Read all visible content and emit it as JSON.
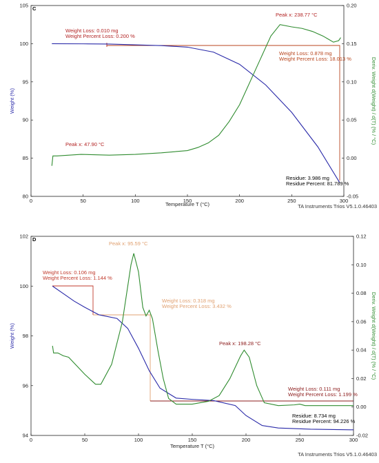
{
  "chart_data": [
    {
      "type": "line",
      "x_label": "Temperature T (°C)",
      "y_label": "Weight (%)",
      "y2_label": "Deriv. Weight d(Weight) / d(T) (% / °C)",
      "footer": "TA Instruments Trios V5.1.0.46403",
      "xlim": [
        0,
        300
      ],
      "xticks": [
        0,
        50,
        100,
        150,
        200,
        250,
        300
      ],
      "ylim": [
        80,
        105
      ],
      "yticks": [
        80,
        85,
        90,
        95,
        100,
        105
      ],
      "y2lim": [
        -0.05,
        0.2
      ],
      "y2ticks": [
        -0.05,
        {
          "value": 0,
          "label": "0.00"
        },
        0.05,
        {
          "value": 0.1,
          "label": "0.10"
        },
        0.15,
        {
          "value": 0.2,
          "label": "0.20"
        }
      ],
      "series": [
        {
          "name": "Weight",
          "color": "#2828a8",
          "axis": "y",
          "x": [
            20,
            50,
            75,
            100,
            125,
            150,
            175,
            200,
            225,
            250,
            275,
            296
          ],
          "values": [
            100,
            99.98,
            99.95,
            99.85,
            99.75,
            99.55,
            98.9,
            97.3,
            94.6,
            91,
            86.5,
            81.8
          ]
        },
        {
          "name": "Deriv. Weight",
          "color": "#2e8b2e",
          "axis": "y2",
          "x": [
            20,
            21,
            25,
            47.9,
            75,
            100,
            125,
            150,
            160,
            170,
            180,
            190,
            200,
            210,
            220,
            230,
            238.77,
            250,
            260,
            270,
            280,
            285,
            290,
            295,
            297
          ],
          "values": [
            -0.01,
            0.003,
            0.003,
            0.005,
            0.004,
            0.005,
            0.007,
            0.01,
            0.014,
            0.02,
            0.03,
            0.048,
            0.07,
            0.1,
            0.13,
            0.16,
            0.175,
            0.172,
            0.17,
            0.166,
            0.16,
            0.156,
            0.152,
            0.154,
            0.158
          ]
        }
      ],
      "annotations": [
        {
          "text": "C",
          "color": "#000000"
        },
        {
          "text": "Weight Loss: 0.010 mg",
          "color": "#b22222"
        },
        {
          "text": "Weight Percent Loss: 0.200 %",
          "color": "#b22222"
        },
        {
          "text": "Peak x: 238.77 °C",
          "color": "#b22222"
        },
        {
          "text": "Weight Loss: 0.878 mg",
          "color": "#b8461e"
        },
        {
          "text": "Weight Percent Loss: 18.013 %",
          "color": "#b8461e"
        },
        {
          "text": "Peak x: 47.90 °C",
          "color": "#b22222"
        },
        {
          "text": "Residue: 3.986 mg",
          "color": "#000000"
        },
        {
          "text": "Residue Percent: 81.789 %",
          "color": "#000000"
        }
      ]
    },
    {
      "type": "line",
      "x_label": "Temperature T (°C)",
      "y_label": "Weight (%)",
      "y2_label": "Deriv. Weight d(Weight) / d(T) (% / °C)",
      "footer": "TA Instruments Trios V5.1.0.46403",
      "xlim": [
        0,
        300
      ],
      "xticks": [
        0,
        50,
        100,
        150,
        200,
        250,
        300
      ],
      "ylim": [
        94,
        102
      ],
      "yticks": [
        94,
        96,
        98,
        100,
        102
      ],
      "y2lim": [
        -0.02,
        0.12
      ],
      "y2ticks": [
        -0.02,
        {
          "value": 0,
          "label": "0.00"
        },
        0.02,
        0.04,
        0.06,
        0.08,
        {
          "value": 0.1,
          "label": "0.10"
        },
        0.12
      ],
      "series": [
        {
          "name": "Weight",
          "color": "#2828a8",
          "axis": "y",
          "x": [
            20,
            30,
            40,
            50,
            63,
            80,
            90,
            100,
            110,
            120,
            135,
            150,
            170,
            190,
            200,
            215,
            230,
            260,
            300
          ],
          "values": [
            100,
            99.7,
            99.4,
            99.15,
            98.85,
            98.7,
            98.3,
            97.5,
            96.6,
            95.9,
            95.5,
            95.45,
            95.4,
            95.2,
            94.8,
            94.4,
            94.3,
            94.25,
            94.226
          ]
        },
        {
          "name": "Deriv. Weight",
          "color": "#2e8b2e",
          "axis": "y2",
          "x": [
            20,
            21,
            25,
            30,
            35,
            40,
            50,
            60,
            65,
            75,
            85,
            93,
            95.59,
            100,
            104,
            107,
            110,
            113,
            118,
            123,
            128,
            135,
            150,
            165,
            175,
            185,
            195,
            198.28,
            203,
            210,
            217,
            230,
            245,
            250,
            255,
            300
          ],
          "values": [
            0.043,
            0.038,
            0.038,
            0.036,
            0.035,
            0.031,
            0.023,
            0.016,
            0.016,
            0.03,
            0.06,
            0.1,
            0.108,
            0.095,
            0.07,
            0.064,
            0.068,
            0.062,
            0.04,
            0.02,
            0.006,
            0.002,
            0.002,
            0.004,
            0.008,
            0.02,
            0.036,
            0.04,
            0.035,
            0.015,
            0.003,
            0.001,
            0.0015,
            0.002,
            0.001,
            0.001
          ]
        }
      ],
      "annotations": [
        {
          "text": "D",
          "color": "#000000"
        },
        {
          "text": "Peak x: 95.59 °C",
          "color": "#e0a070"
        },
        {
          "text": "Weight Loss: 0.106 mg",
          "color": "#c0392b"
        },
        {
          "text": "Weight Percent Loss: 1.144 %",
          "color": "#c0392b"
        },
        {
          "text": "Weight Loss: 0.318 mg",
          "color": "#e0a070"
        },
        {
          "text": "Weight Percent Loss: 3.432 %",
          "color": "#e0a070"
        },
        {
          "text": "Peak x: 198.28 °C",
          "color": "#8b1a1a"
        },
        {
          "text": "Weight Loss: 0.111 mg",
          "color": "#8b1a1a"
        },
        {
          "text": "Weight Percent Loss: 1.199 %",
          "color": "#8b1a1a"
        },
        {
          "text": "Residue: 8.734 mg",
          "color": "#000000"
        },
        {
          "text": "Residue Percent: 94.226 %",
          "color": "#000000"
        }
      ]
    }
  ]
}
